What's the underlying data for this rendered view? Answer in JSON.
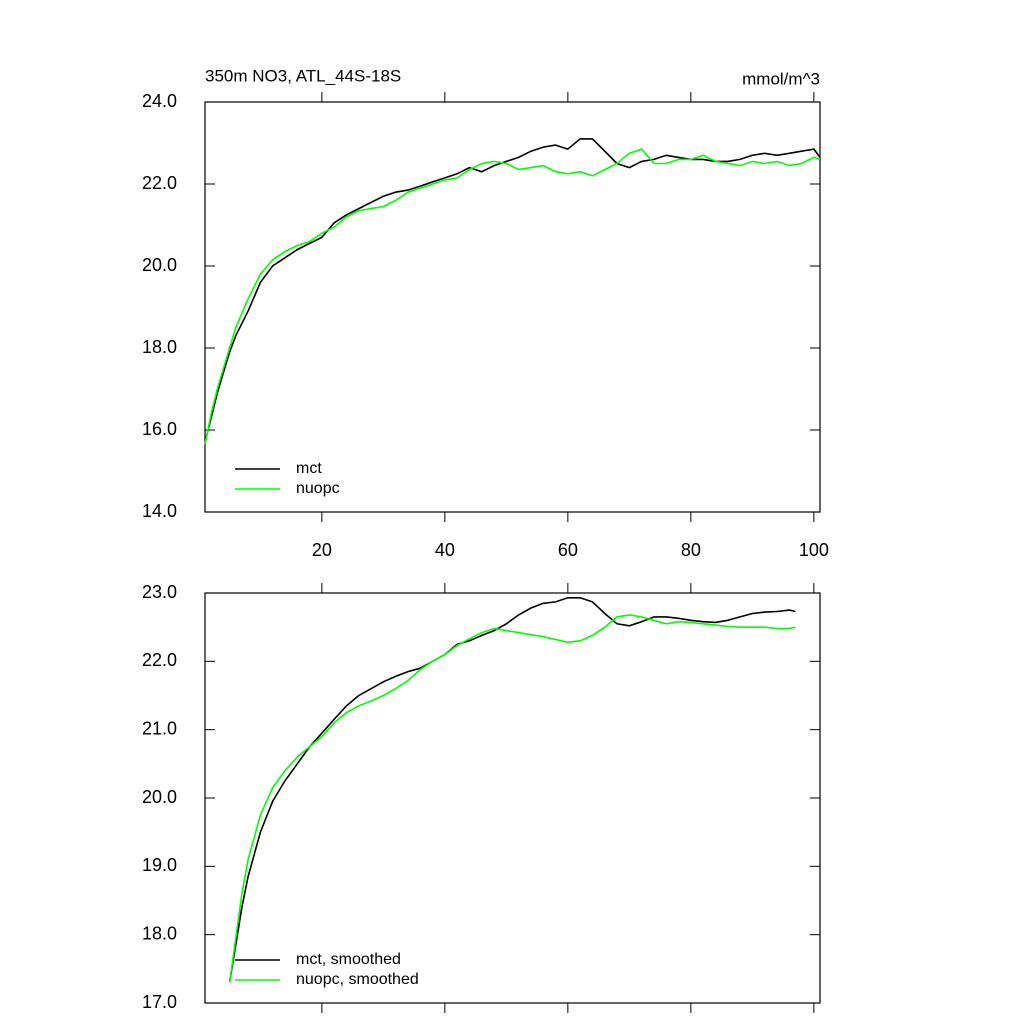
{
  "chart_data": [
    {
      "type": "line",
      "title": "350m NO3, ATL_44S-18S",
      "units": "mmol/m^3",
      "x": [
        1,
        2,
        3,
        4,
        5,
        6,
        8,
        10,
        12,
        14,
        16,
        18,
        20,
        22,
        24,
        26,
        28,
        30,
        32,
        34,
        36,
        38,
        40,
        42,
        44,
        46,
        48,
        50,
        52,
        54,
        56,
        58,
        60,
        62,
        64,
        66,
        68,
        70,
        72,
        74,
        76,
        78,
        80,
        82,
        84,
        86,
        88,
        90,
        92,
        94,
        96,
        98,
        100,
        101
      ],
      "series": [
        {
          "name": "mct",
          "color": "#000000",
          "values": [
            15.7,
            16.3,
            16.9,
            17.4,
            17.9,
            18.3,
            18.9,
            19.6,
            20.0,
            20.2,
            20.4,
            20.55,
            20.7,
            21.05,
            21.25,
            21.4,
            21.55,
            21.7,
            21.8,
            21.85,
            21.95,
            22.05,
            22.15,
            22.25,
            22.4,
            22.3,
            22.45,
            22.55,
            22.65,
            22.8,
            22.9,
            22.95,
            22.85,
            23.1,
            23.1,
            22.8,
            22.5,
            22.4,
            22.55,
            22.6,
            22.7,
            22.65,
            22.6,
            22.6,
            22.55,
            22.55,
            22.6,
            22.7,
            22.75,
            22.7,
            22.75,
            22.8,
            22.85,
            22.65
          ]
        },
        {
          "name": "nuopc",
          "color": "#00ff00",
          "values": [
            15.65,
            16.4,
            17.0,
            17.5,
            18.0,
            18.5,
            19.2,
            19.8,
            20.15,
            20.35,
            20.5,
            20.6,
            20.8,
            20.95,
            21.2,
            21.35,
            21.4,
            21.45,
            21.6,
            21.8,
            21.9,
            22.0,
            22.1,
            22.15,
            22.35,
            22.5,
            22.55,
            22.5,
            22.35,
            22.4,
            22.45,
            22.3,
            22.25,
            22.3,
            22.2,
            22.35,
            22.5,
            22.75,
            22.85,
            22.5,
            22.5,
            22.6,
            22.6,
            22.7,
            22.55,
            22.5,
            22.45,
            22.55,
            22.5,
            22.55,
            22.45,
            22.5,
            22.65,
            22.6
          ]
        }
      ],
      "xlim": [
        1,
        101
      ],
      "xticks": [
        20,
        40,
        60,
        80,
        100
      ],
      "xtick_labels": true,
      "ylim": [
        14,
        24
      ],
      "yticks": [
        {
          "value": 14,
          "label": "14.0"
        },
        {
          "value": 16,
          "label": "16.0"
        },
        {
          "value": 18,
          "label": "18.0"
        },
        {
          "value": 20,
          "label": "20.0"
        },
        {
          "value": 22,
          "label": "22.0"
        },
        {
          "value": 24,
          "label": "24.0"
        }
      ],
      "legend": "lower-left"
    },
    {
      "type": "line",
      "x": [
        5,
        6,
        7,
        8,
        10,
        12,
        14,
        16,
        18,
        20,
        22,
        24,
        26,
        28,
        30,
        32,
        34,
        36,
        38,
        40,
        42,
        44,
        46,
        48,
        50,
        52,
        54,
        56,
        58,
        60,
        62,
        64,
        66,
        68,
        70,
        72,
        74,
        76,
        78,
        80,
        82,
        84,
        86,
        88,
        90,
        92,
        94,
        96,
        97
      ],
      "series": [
        {
          "name": "mct, smoothed",
          "color": "#000000",
          "values": [
            17.3,
            17.85,
            18.4,
            18.85,
            19.5,
            19.95,
            20.25,
            20.5,
            20.75,
            20.95,
            21.15,
            21.35,
            21.5,
            21.6,
            21.7,
            21.78,
            21.85,
            21.9,
            22.0,
            22.1,
            22.25,
            22.3,
            22.38,
            22.45,
            22.55,
            22.68,
            22.78,
            22.85,
            22.87,
            22.93,
            22.93,
            22.87,
            22.7,
            22.55,
            22.52,
            22.58,
            22.65,
            22.65,
            22.63,
            22.6,
            22.58,
            22.57,
            22.6,
            22.65,
            22.7,
            22.72,
            22.73,
            22.75,
            22.73
          ]
        },
        {
          "name": "nuopc, smoothed",
          "color": "#00ff00",
          "values": [
            17.3,
            17.95,
            18.6,
            19.1,
            19.75,
            20.15,
            20.4,
            20.6,
            20.75,
            20.9,
            21.1,
            21.25,
            21.35,
            21.42,
            21.5,
            21.6,
            21.72,
            21.88,
            22.0,
            22.1,
            22.23,
            22.33,
            22.42,
            22.48,
            22.45,
            22.42,
            22.39,
            22.36,
            22.32,
            22.28,
            22.3,
            22.38,
            22.5,
            22.65,
            22.68,
            22.65,
            22.6,
            22.55,
            22.58,
            22.57,
            22.55,
            22.53,
            22.51,
            22.5,
            22.5,
            22.5,
            22.48,
            22.48,
            22.5
          ]
        }
      ],
      "xlim": [
        1,
        101
      ],
      "xticks": [
        20,
        40,
        60,
        80,
        100
      ],
      "xtick_labels": false,
      "ylim": [
        17,
        23
      ],
      "yticks": [
        {
          "value": 17,
          "label": "17.0"
        },
        {
          "value": 18,
          "label": "18.0"
        },
        {
          "value": 19,
          "label": "19.0"
        },
        {
          "value": 20,
          "label": "20.0"
        },
        {
          "value": 21,
          "label": "21.0"
        },
        {
          "value": 22,
          "label": "22.0"
        },
        {
          "value": 23,
          "label": "23.0"
        }
      ],
      "legend": "lower-left"
    }
  ]
}
